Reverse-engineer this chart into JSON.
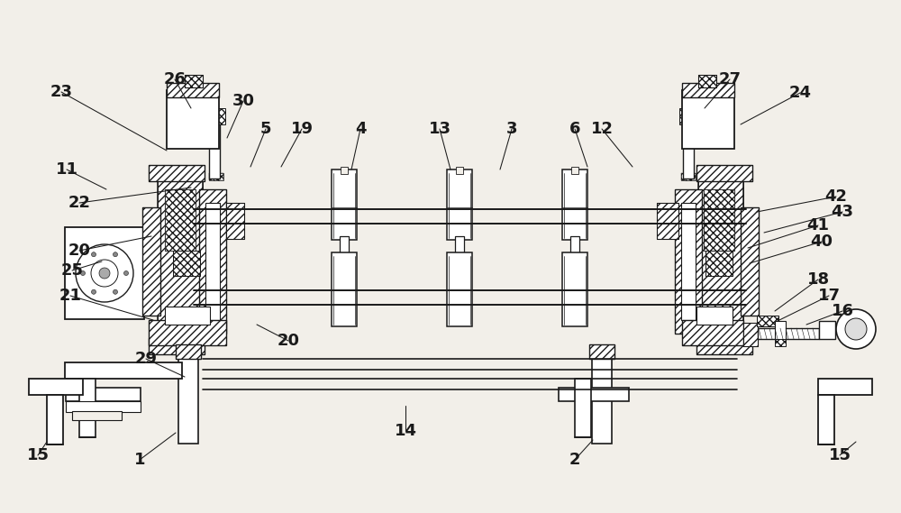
{
  "bg_color": "#f2efe9",
  "line_color": "#1a1a1a",
  "figsize": [
    10.0,
    5.69
  ],
  "dpi": 100,
  "refs": [
    [
      "23",
      68,
      102,
      185,
      167
    ],
    [
      "26",
      194,
      88,
      212,
      120
    ],
    [
      "30",
      270,
      112,
      252,
      153
    ],
    [
      "11",
      74,
      188,
      118,
      210
    ],
    [
      "22",
      88,
      225,
      212,
      208
    ],
    [
      "20",
      88,
      278,
      168,
      262
    ],
    [
      "25",
      80,
      300,
      113,
      290
    ],
    [
      "21",
      78,
      328,
      170,
      355
    ],
    [
      "20",
      320,
      378,
      285,
      360
    ],
    [
      "29",
      162,
      398,
      205,
      418
    ],
    [
      "1",
      155,
      510,
      195,
      480
    ],
    [
      "15",
      42,
      505,
      52,
      490
    ],
    [
      "5",
      295,
      143,
      278,
      185
    ],
    [
      "19",
      335,
      143,
      312,
      185
    ],
    [
      "4",
      400,
      143,
      390,
      188
    ],
    [
      "13",
      488,
      143,
      500,
      188
    ],
    [
      "3",
      568,
      143,
      555,
      188
    ],
    [
      "6",
      638,
      143,
      652,
      185
    ],
    [
      "12",
      668,
      143,
      702,
      185
    ],
    [
      "14",
      450,
      478,
      450,
      450
    ],
    [
      "27",
      810,
      88,
      782,
      120
    ],
    [
      "24",
      888,
      103,
      822,
      138
    ],
    [
      "42",
      928,
      218,
      840,
      235
    ],
    [
      "41",
      908,
      250,
      830,
      275
    ],
    [
      "43",
      935,
      235,
      848,
      258
    ],
    [
      "40",
      912,
      268,
      832,
      292
    ],
    [
      "18",
      908,
      310,
      860,
      345
    ],
    [
      "17",
      920,
      328,
      865,
      355
    ],
    [
      "16",
      935,
      345,
      895,
      360
    ],
    [
      "2",
      638,
      510,
      658,
      488
    ],
    [
      "15",
      932,
      505,
      950,
      490
    ]
  ]
}
